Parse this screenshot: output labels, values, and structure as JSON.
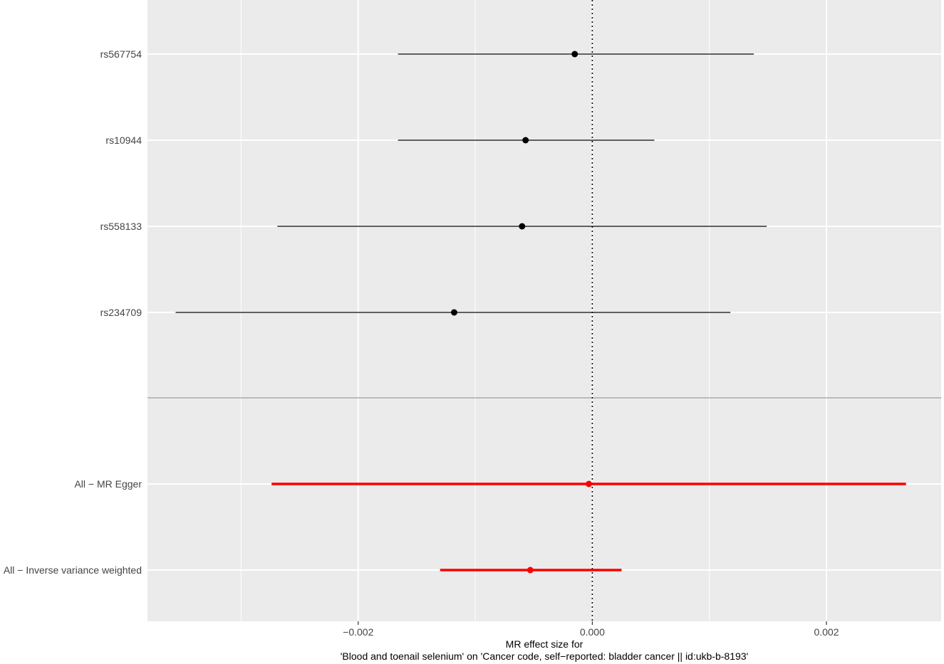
{
  "chart_data": {
    "type": "forest",
    "title": "",
    "xlabel_lines": [
      "MR effect size for",
      "'Blood and toenail selenium' on 'Cancer code, self−reported: bladder cancer || id:ukb-b-8193'"
    ],
    "ylabel": "",
    "xlim": [
      -0.0038,
      0.00298
    ],
    "x_ticks": [
      -0.002,
      0.0,
      0.002
    ],
    "x_tick_labels": [
      "−0.002",
      "0.000",
      "0.002"
    ],
    "reference_line_x": 0,
    "grid": true,
    "snps": [
      {
        "label": "rs567754",
        "estimate": -0.00015,
        "lower": -0.00166,
        "upper": 0.00138
      },
      {
        "label": "rs10944",
        "estimate": -0.00057,
        "lower": -0.00166,
        "upper": 0.00053
      },
      {
        "label": "rs558133",
        "estimate": -0.0006,
        "lower": -0.00269,
        "upper": 0.00149
      },
      {
        "label": "rs234709",
        "estimate": -0.00118,
        "lower": -0.00356,
        "upper": 0.00118
      }
    ],
    "methods": [
      {
        "label": "All − MR Egger",
        "estimate": -3e-05,
        "lower": -0.00274,
        "upper": 0.00268
      },
      {
        "label": "All − Inverse variance weighted",
        "estimate": -0.00053,
        "lower": -0.0013,
        "upper": 0.00025
      }
    ],
    "colors": {
      "panel": "#ebebeb",
      "grid": "#ffffff",
      "snp": "#000000",
      "method": "#ff0000",
      "separator": "#aaaaaa"
    }
  }
}
